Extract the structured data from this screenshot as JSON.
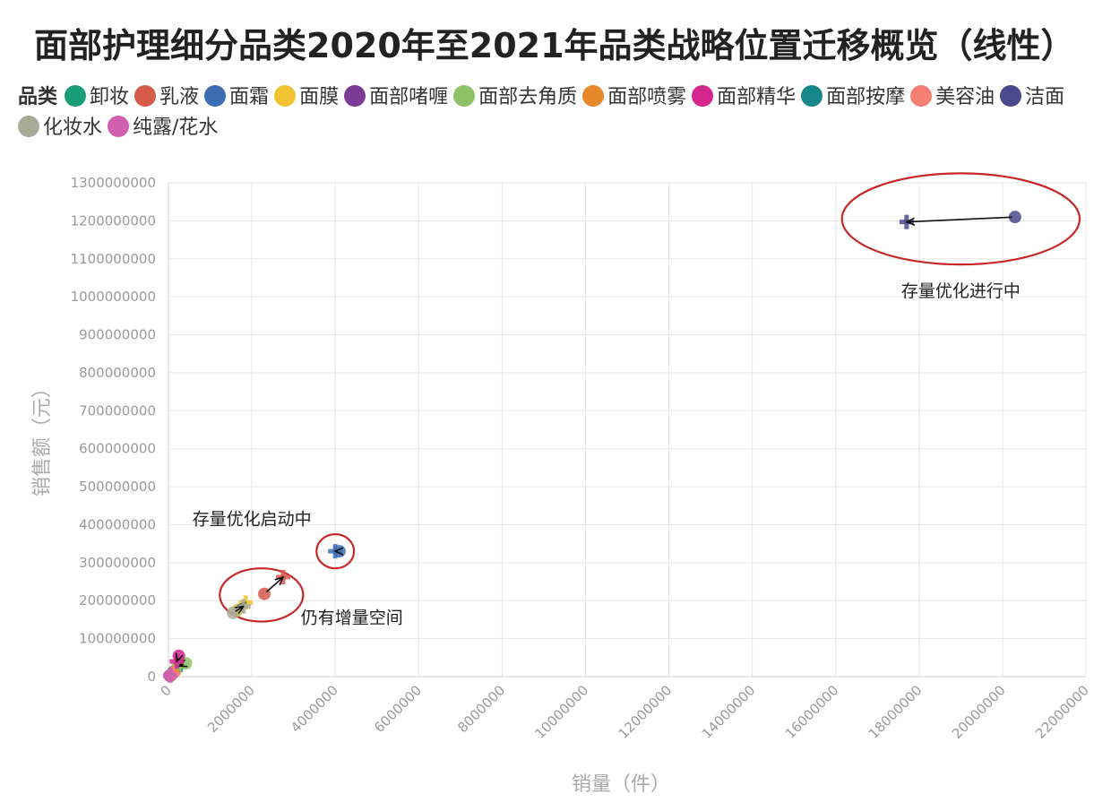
{
  "chart_data": {
    "type": "scatter",
    "title": "面部护理细分品类2020年至2021年品类战略位置迁移概览（线性）",
    "legend_title": "品类",
    "legend_position": "top",
    "xlabel": "销量（件）",
    "ylabel": "销售额（元）",
    "xlim": [
      0,
      22000000
    ],
    "ylim": [
      0,
      1300000000
    ],
    "x_ticks": [
      0,
      2000000,
      4000000,
      6000000,
      8000000,
      10000000,
      12000000,
      14000000,
      16000000,
      18000000,
      20000000,
      22000000
    ],
    "y_ticks": [
      0,
      100000000,
      200000000,
      300000000,
      400000000,
      500000000,
      600000000,
      700000000,
      800000000,
      900000000,
      1000000000,
      1100000000,
      1200000000,
      1300000000
    ],
    "grid": true,
    "series": [
      {
        "name": "卸妆",
        "color": "#1a9e77",
        "from": [
          150000,
          15000000
        ],
        "to": [
          180000,
          18000000
        ]
      },
      {
        "name": "乳液",
        "color": "#d45a4a",
        "from": [
          2300000,
          218000000
        ],
        "to": [
          2750000,
          262000000
        ]
      },
      {
        "name": "面霜",
        "color": "#3c6db0",
        "from": [
          4100000,
          330000000
        ],
        "to": [
          4000000,
          330000000
        ]
      },
      {
        "name": "面膜",
        "color": "#f1c232",
        "from": [
          1650000,
          175000000
        ],
        "to": [
          1850000,
          195000000
        ]
      },
      {
        "name": "面部啫喱",
        "color": "#7b3a96",
        "from": [
          60000,
          5000000
        ],
        "to": [
          80000,
          8000000
        ]
      },
      {
        "name": "面部去角质",
        "color": "#8cc265",
        "from": [
          420000,
          35000000
        ],
        "to": [
          250000,
          28000000
        ]
      },
      {
        "name": "面部喷雾",
        "color": "#e6892b",
        "from": [
          100000,
          8000000
        ],
        "to": [
          120000,
          10000000
        ]
      },
      {
        "name": "面部精华",
        "color": "#d4268e",
        "from": [
          250000,
          55000000
        ],
        "to": [
          200000,
          40000000
        ]
      },
      {
        "name": "面部按摩",
        "color": "#17868a",
        "from": [
          40000,
          3000000
        ],
        "to": [
          50000,
          4000000
        ]
      },
      {
        "name": "美容油",
        "color": "#f47f73",
        "from": [
          80000,
          6000000
        ],
        "to": [
          100000,
          8000000
        ]
      },
      {
        "name": "洁面",
        "color": "#4a4a8e",
        "from": [
          20300000,
          1210000000
        ],
        "to": [
          17700000,
          1197000000
        ]
      },
      {
        "name": "化妆水",
        "color": "#a8ab98",
        "from": [
          1550000,
          168000000
        ],
        "to": [
          1800000,
          185000000
        ]
      },
      {
        "name": "纯露/花水",
        "color": "#d05fae",
        "from": [
          30000,
          2000000
        ],
        "to": [
          40000,
          3000000
        ]
      }
    ],
    "annotations": [
      {
        "text": "存量优化进行中",
        "x": 19000000,
        "y": 1000000000
      },
      {
        "text": "存量优化启动中",
        "x": 2000000,
        "y": 400000000
      },
      {
        "text": "仍有增量空间",
        "x": 4400000,
        "y": 140000000
      }
    ],
    "highlight_ellipses": [
      {
        "cx": 19000000,
        "cy": 1205000000,
        "rx": 2850000,
        "ry": 120000000
      },
      {
        "cx": 4000000,
        "cy": 330000000,
        "rx": 450000,
        "ry": 45000000
      },
      {
        "cx": 2230000,
        "cy": 215000000,
        "rx": 1000000,
        "ry": 70000000
      }
    ]
  }
}
